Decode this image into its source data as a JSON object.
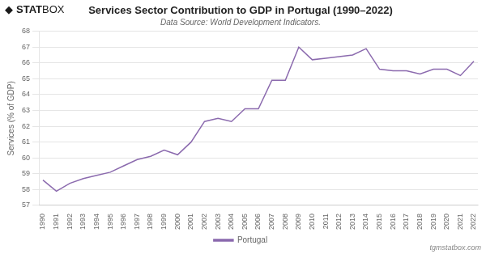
{
  "chart_data": {
    "type": "line",
    "title": "Services Sector Contribution to GDP in Portugal (1990–2022)",
    "subtitle": "Data Source: World Development Indicators.",
    "y_label": "Services (% of GDP)",
    "x": [
      1990,
      1991,
      1992,
      1993,
      1994,
      1995,
      1996,
      1997,
      1998,
      1999,
      2000,
      2001,
      2002,
      2003,
      2004,
      2005,
      2006,
      2007,
      2008,
      2009,
      2010,
      2011,
      2012,
      2013,
      2014,
      2015,
      2016,
      2017,
      2018,
      2019,
      2020,
      2021,
      2022
    ],
    "series": [
      {
        "name": "Portugal",
        "color": "#8B6AAE",
        "values": [
          58.6,
          57.9,
          58.4,
          58.7,
          58.9,
          59.1,
          59.5,
          59.9,
          60.1,
          60.5,
          60.2,
          61.0,
          62.3,
          62.5,
          62.3,
          63.1,
          63.1,
          64.9,
          64.9,
          67.0,
          66.2,
          66.3,
          66.4,
          66.5,
          66.9,
          65.6,
          65.5,
          65.5,
          65.3,
          65.6,
          65.6,
          65.2,
          66.1
        ]
      }
    ],
    "xlim": [
      1989.7,
      2022.3
    ],
    "xticks": [
      1990,
      1991,
      1992,
      1993,
      1994,
      1995,
      1996,
      1997,
      1998,
      1999,
      2000,
      2001,
      2002,
      2003,
      2004,
      2005,
      2006,
      2007,
      2008,
      2009,
      2010,
      2011,
      2012,
      2013,
      2014,
      2015,
      2016,
      2017,
      2018,
      2019,
      2020,
      2021,
      2022
    ],
    "ylim": [
      57,
      68
    ],
    "yticks": [
      57,
      58,
      59,
      60,
      61,
      62,
      63,
      64,
      65,
      66,
      67,
      68
    ],
    "grid": "y",
    "legend": "bottom",
    "annotations": [
      "◆",
      "STAT",
      "BOX",
      "tgmstatbox.com"
    ]
  }
}
